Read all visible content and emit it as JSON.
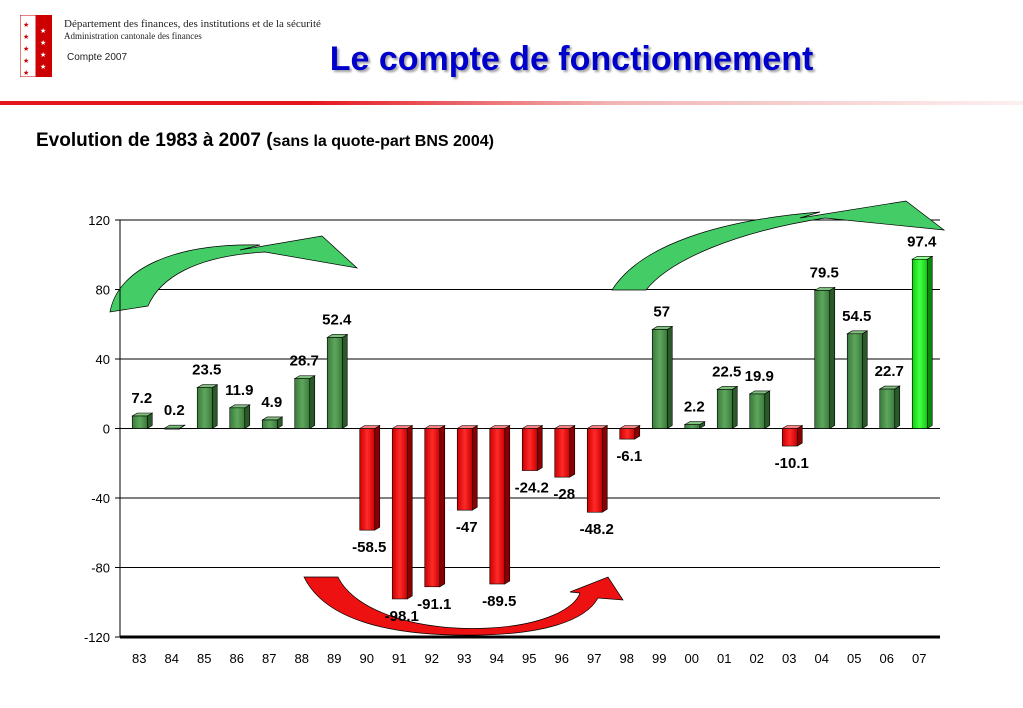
{
  "header": {
    "department": "Département des finances, des institutions et de la sécurité",
    "administration": "Administration cantonale des finances",
    "compte": "Compte 2007",
    "title": "Le compte de fonctionnement"
  },
  "subtitle": {
    "main": "Evolution de 1983 à 2007 (",
    "paren": "sans la quote-part BNS 2004)"
  },
  "colors": {
    "positive": "#3f7f3f",
    "negative": "#e00000",
    "highlight": "#22dd22",
    "arrow_green": "#44cc66",
    "arrow_red": "#ee1111"
  },
  "chart_data": {
    "type": "bar",
    "title": "",
    "xlabel": "",
    "ylabel": "",
    "categories": [
      "83",
      "84",
      "85",
      "86",
      "87",
      "88",
      "89",
      "90",
      "91",
      "92",
      "93",
      "94",
      "95",
      "96",
      "97",
      "98",
      "99",
      "00",
      "01",
      "02",
      "03",
      "04",
      "05",
      "06",
      "07"
    ],
    "values": [
      7.2,
      0.2,
      23.5,
      11.9,
      4.9,
      28.7,
      52.4,
      -58.5,
      -98.1,
      -91.1,
      -47,
      -89.5,
      -24.2,
      -28,
      -48.2,
      -6.1,
      57,
      2.2,
      22.5,
      19.9,
      -10.1,
      79.5,
      54.5,
      22.7,
      97.4
    ],
    "labels": [
      "7.2",
      "0.2",
      "23.5",
      "11.9",
      "4.9",
      "28.7",
      "52.4",
      "-58.5",
      "-98.1",
      "-91.1",
      "-47",
      "-89.5",
      "-24.2",
      "-28",
      "-48.2",
      "-6.1",
      "57",
      "2.2",
      "22.5",
      "19.9",
      "-10.1",
      "79.5",
      "54.5",
      "22.7",
      "97.4"
    ],
    "yticks": [
      "120",
      "80",
      "40",
      "0",
      "-40",
      "-80",
      "-120"
    ],
    "ylim": [
      -120,
      120
    ],
    "grid": true,
    "highlight_index": 24
  }
}
